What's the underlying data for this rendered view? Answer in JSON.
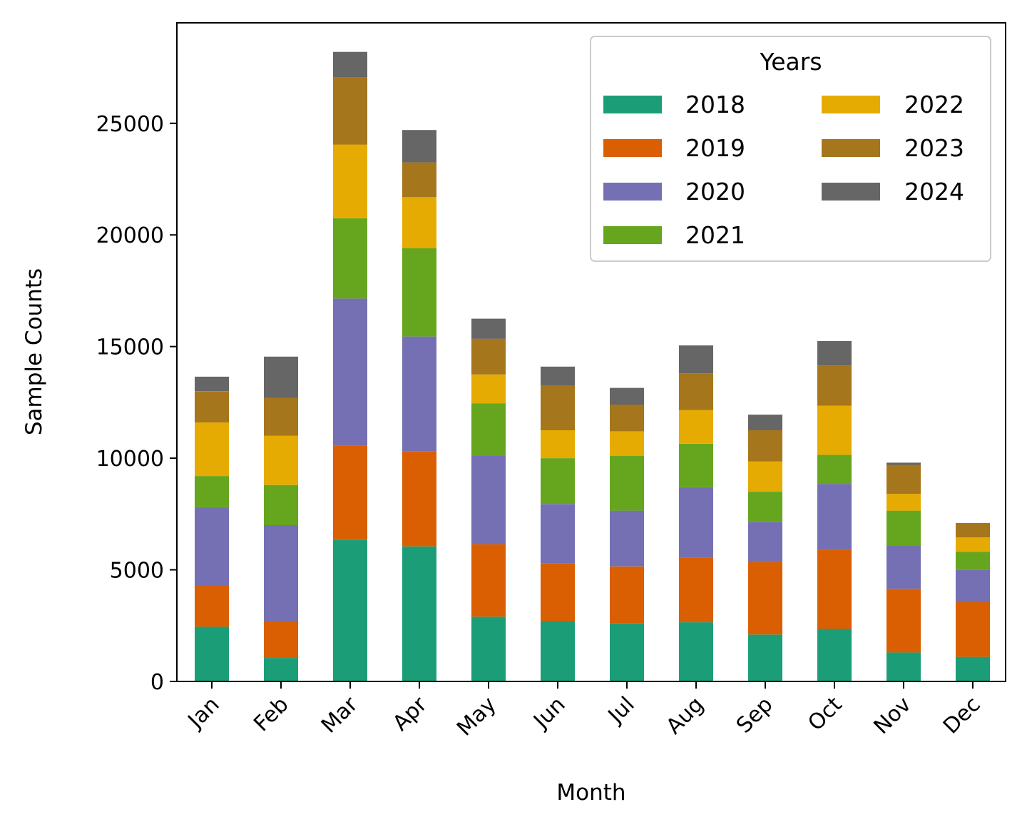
{
  "chart_data": {
    "type": "bar",
    "stacked": true,
    "categories": [
      "Jan",
      "Feb",
      "Mar",
      "Apr",
      "May",
      "Jun",
      "Jul",
      "Aug",
      "Sep",
      "Oct",
      "Nov",
      "Dec"
    ],
    "xlabel": "Month",
    "ylabel": "Sample Counts",
    "ylim": [
      0,
      29500
    ],
    "yticks": [
      0,
      5000,
      10000,
      15000,
      20000,
      25000
    ],
    "ytick_labels": [
      "0",
      "5000",
      "10000",
      "15000",
      "20000",
      "25000"
    ],
    "grid": false,
    "legend": {
      "title": "Years",
      "placement": "top-right",
      "columns": 2
    },
    "series": [
      {
        "name": "2018",
        "color": "#1b9e77",
        "values": [
          2450,
          1050,
          6350,
          6050,
          2900,
          2700,
          2600,
          2650,
          2100,
          2350,
          1300,
          1100
        ]
      },
      {
        "name": "2019",
        "color": "#d95f02",
        "values": [
          1850,
          1650,
          4200,
          4250,
          3250,
          2600,
          2550,
          2900,
          3250,
          3550,
          2850,
          2450
        ]
      },
      {
        "name": "2020",
        "color": "#7570b3",
        "values": [
          3500,
          4300,
          6600,
          5150,
          3950,
          2650,
          2500,
          3150,
          1800,
          2950,
          1950,
          1450
        ]
      },
      {
        "name": "2021",
        "color": "#66a61e",
        "values": [
          1400,
          1800,
          3600,
          3950,
          2350,
          2050,
          2450,
          1950,
          1350,
          1300,
          1550,
          800
        ]
      },
      {
        "name": "2022",
        "color": "#e6ab02",
        "values": [
          2400,
          2200,
          3300,
          2300,
          1300,
          1250,
          1100,
          1500,
          1350,
          2200,
          750,
          650
        ]
      },
      {
        "name": "2023",
        "color": "#a6761d",
        "values": [
          1400,
          1700,
          3000,
          1550,
          1600,
          2000,
          1200,
          1650,
          1400,
          1800,
          1300,
          650
        ]
      },
      {
        "name": "2024",
        "color": "#666666",
        "values": [
          650,
          1850,
          1150,
          1450,
          900,
          850,
          750,
          1250,
          700,
          1100,
          100,
          0
        ]
      }
    ]
  }
}
